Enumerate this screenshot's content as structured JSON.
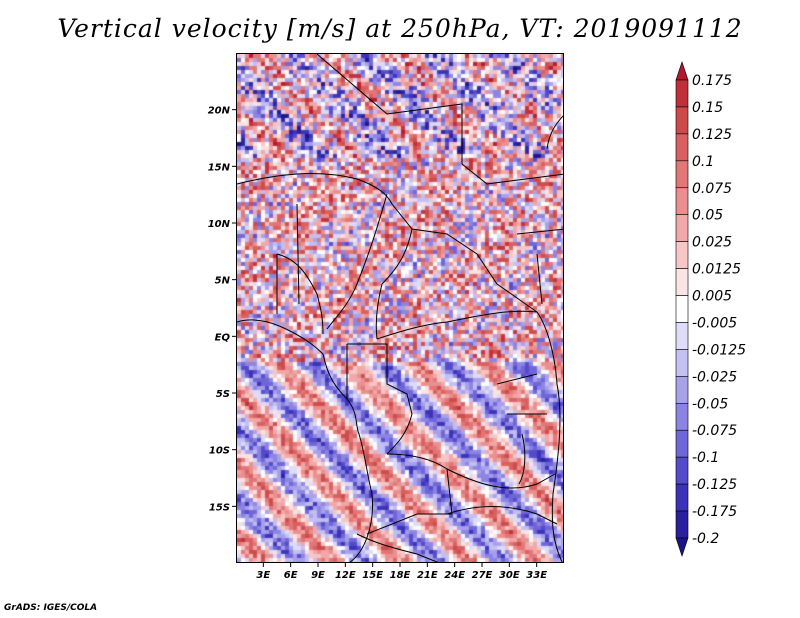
{
  "title": "Vertical velocity [m/s] at 250hPa, VT: 2019091112",
  "credit": "GrADS: IGES/COLA",
  "map": {
    "lon_range": [
      0,
      36
    ],
    "lat_range": [
      -20,
      25
    ],
    "lat_ticks": [
      {
        "value": 20,
        "label": "20N"
      },
      {
        "value": 15,
        "label": "15N"
      },
      {
        "value": 10,
        "label": "10N"
      },
      {
        "value": 5,
        "label": "5N"
      },
      {
        "value": 0,
        "label": "EQ"
      },
      {
        "value": -5,
        "label": "5S"
      },
      {
        "value": -10,
        "label": "10S"
      },
      {
        "value": -15,
        "label": "15S"
      }
    ],
    "lon_ticks": [
      {
        "value": 3,
        "label": "3E"
      },
      {
        "value": 6,
        "label": "6E"
      },
      {
        "value": 9,
        "label": "9E"
      },
      {
        "value": 12,
        "label": "12E"
      },
      {
        "value": 15,
        "label": "15E"
      },
      {
        "value": 18,
        "label": "18E"
      },
      {
        "value": 21,
        "label": "21E"
      },
      {
        "value": 24,
        "label": "24E"
      },
      {
        "value": 27,
        "label": "27E"
      },
      {
        "value": 30,
        "label": "30E"
      },
      {
        "value": 33,
        "label": "33E"
      }
    ]
  },
  "colorbar": {
    "labels": [
      "0.175",
      "0.15",
      "0.125",
      "0.1",
      "0.075",
      "0.05",
      "0.025",
      "0.0125",
      "0.005",
      "-0.005",
      "-0.0125",
      "-0.025",
      "-0.05",
      "-0.075",
      "-0.1",
      "-0.125",
      "-0.175",
      "-0.2"
    ],
    "colors": [
      "#b2182b",
      "#c0303a",
      "#cd4a4a",
      "#d96060",
      "#e27777",
      "#ea8f8f",
      "#f1a8a8",
      "#f7c6c6",
      "#fce4e4",
      "#ffffff",
      "#dedcf8",
      "#c4c0f2",
      "#a8a2eb",
      "#8c84e2",
      "#6f66d8",
      "#534bca",
      "#3a32b8",
      "#2a209f",
      "#1c1388"
    ]
  }
}
